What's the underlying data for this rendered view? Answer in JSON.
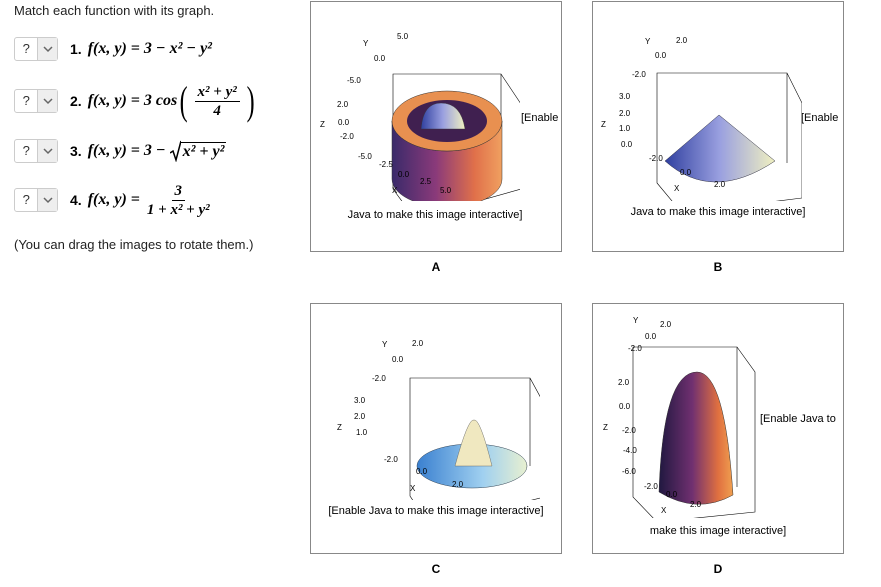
{
  "instructions": "Match each function with its graph.",
  "questions": [
    {
      "select": "?",
      "number": "1.",
      "prefix": "f(x, y) = 3 − x² − y²"
    },
    {
      "select": "?",
      "number": "2.",
      "prefix": "f(x, y) = 3 cos",
      "open": "(",
      "numerator": "x² + y²",
      "denominator": "4",
      "close": ")"
    },
    {
      "select": "?",
      "number": "3.",
      "prefix": "f(x, y) = 3 −",
      "radicand": "x² + y²"
    },
    {
      "select": "?",
      "number": "4.",
      "prefix": "f(x, y) =",
      "numerator": "3",
      "denominator": "1 + x² + y²"
    }
  ],
  "note": "(You can drag the images to rotate them.)",
  "graphs": [
    {
      "letter": "A",
      "side_text": "[Enable",
      "caption": "Java to make this image interactive]",
      "axis_labels": [
        "5.0",
        "Y",
        "0.0",
        "-5.0",
        "2.0",
        "Z",
        "0.0",
        "-2.0",
        "-5.0",
        "-2.5",
        "0.0",
        "2.5",
        "5.0",
        "X"
      ]
    },
    {
      "letter": "B",
      "side_text": "[Enable",
      "caption": "Java to make this image interactive]",
      "axis_labels": [
        "Y",
        "2.0",
        "0.0",
        "-2.0",
        "3.0",
        "2.0",
        "Z",
        "1.0",
        "0.0",
        "-2.0",
        "0.0",
        "X",
        "2.0"
      ]
    },
    {
      "letter": "C",
      "caption": "[Enable Java to make this image interactive]",
      "axis_labels": [
        "Y",
        "2.0",
        "0.0",
        "-2.0",
        "3.0",
        "2.0",
        "Z",
        "1.0",
        "-2.0",
        "0.0",
        "X",
        "2.0"
      ]
    },
    {
      "letter": "D",
      "side_text": "[Enable Java to",
      "caption": "make this image interactive]",
      "axis_labels": [
        "Y",
        "2.0",
        "0.0",
        "-2.0",
        "2.0",
        "0.0",
        "Z",
        "-2.0",
        "-4.0",
        "-6.0",
        "-2.0",
        "0.0",
        "X",
        "2.0"
      ]
    }
  ]
}
